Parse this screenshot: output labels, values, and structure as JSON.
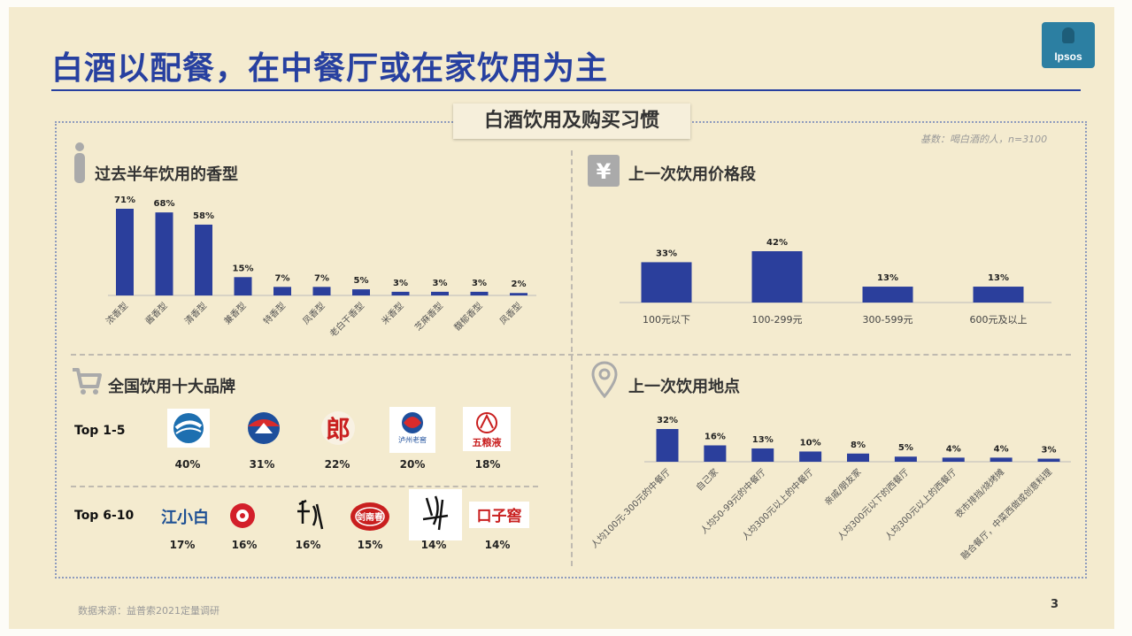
{
  "slide": {
    "title": "白酒以配餐，在中餐厅或在家饮用为主",
    "logo_text": "Ipsos",
    "section_title": "白酒饮用及购买习惯",
    "base_note": "基数：喝白酒的人，n=3100",
    "source": "数据来源：益普索2021定量调研",
    "page_number": "3"
  },
  "colors": {
    "bar": "#2b3f9c",
    "title": "#2740a0",
    "background": "#f4ebcf"
  },
  "panels": {
    "aroma": {
      "title": "过去半年饮用的香型",
      "icon": "person-icon"
    },
    "price": {
      "title": "上一次饮用价格段",
      "icon": "yen-icon"
    },
    "brands": {
      "title": "全国饮用十大品牌",
      "icon": "shopping-cart-icon"
    },
    "place": {
      "title": "上一次饮用地点",
      "icon": "location-pin-icon"
    }
  },
  "brands": {
    "row1_label": "Top 1-5",
    "row2_label": "Top 6-10",
    "row1": [
      {
        "logo_icon": "brand-logo-1-icon",
        "pct": "40%"
      },
      {
        "logo_icon": "brand-logo-2-icon",
        "pct": "31%"
      },
      {
        "logo_icon": "lang-logo-icon",
        "logo_text": "郎",
        "pct": "22%"
      },
      {
        "logo_icon": "luzhou-laojiao-logo-icon",
        "logo_text": "泸州老窖",
        "pct": "20%"
      },
      {
        "logo_icon": "wuliangye-logo-icon",
        "logo_text": "五粮液",
        "pct": "18%"
      }
    ],
    "row2": [
      {
        "logo_icon": "jiangxiaobai-logo-icon",
        "logo_text": "江小白",
        "pct": "17%"
      },
      {
        "logo_icon": "brand-logo-7-icon",
        "pct": "16%"
      },
      {
        "logo_icon": "brand-logo-8-icon",
        "pct": "16%"
      },
      {
        "logo_icon": "jiannanchun-logo-icon",
        "logo_text": "剑南春",
        "pct": "15%"
      },
      {
        "logo_icon": "brand-logo-10-icon",
        "pct": "14%"
      },
      {
        "logo_icon": "kouzijiao-logo-icon",
        "logo_text": "口子窖",
        "pct": "14%"
      }
    ]
  },
  "chart_data": [
    {
      "type": "bar",
      "title": "过去半年饮用的香型",
      "categories": [
        "浓香型",
        "酱香型",
        "清香型",
        "兼香型",
        "特香型",
        "凤香型",
        "老白干香型",
        "米香型",
        "芝麻香型",
        "馥郁香型",
        "凤香型"
      ],
      "values": [
        71,
        68,
        58,
        15,
        7,
        7,
        5,
        3,
        3,
        3,
        2
      ],
      "data_labels": [
        "71%",
        "68%",
        "58%",
        "15%",
        "7%",
        "7%",
        "5%",
        "3%",
        "3%",
        "3%",
        "2%"
      ],
      "ylim": [
        0,
        100
      ]
    },
    {
      "type": "bar",
      "title": "上一次饮用价格段",
      "categories": [
        "100元以下",
        "100-299元",
        "300-599元",
        "600元及以上"
      ],
      "values": [
        33,
        42,
        13,
        13
      ],
      "data_labels": [
        "33%",
        "42%",
        "13%",
        "13%"
      ],
      "ylim": [
        0,
        100
      ]
    },
    {
      "type": "bar",
      "title": "上一次饮用地点",
      "categories": [
        "人均100元-300元的中餐厅",
        "自己家",
        "人均50-99元的中餐厅",
        "人均300元以上的中餐厅",
        "亲戚/朋友家",
        "人均300元以下的西餐厅",
        "人均300元以上的西餐厅",
        "夜市排挡/烧烤摊",
        "融合餐厅，中菜西做或创意料理"
      ],
      "values": [
        32,
        16,
        13,
        10,
        8,
        5,
        4,
        4,
        3
      ],
      "data_labels": [
        "32%",
        "16%",
        "13%",
        "10%",
        "8%",
        "5%",
        "4%",
        "4%",
        "3%"
      ],
      "ylim": [
        0,
        100
      ]
    }
  ]
}
